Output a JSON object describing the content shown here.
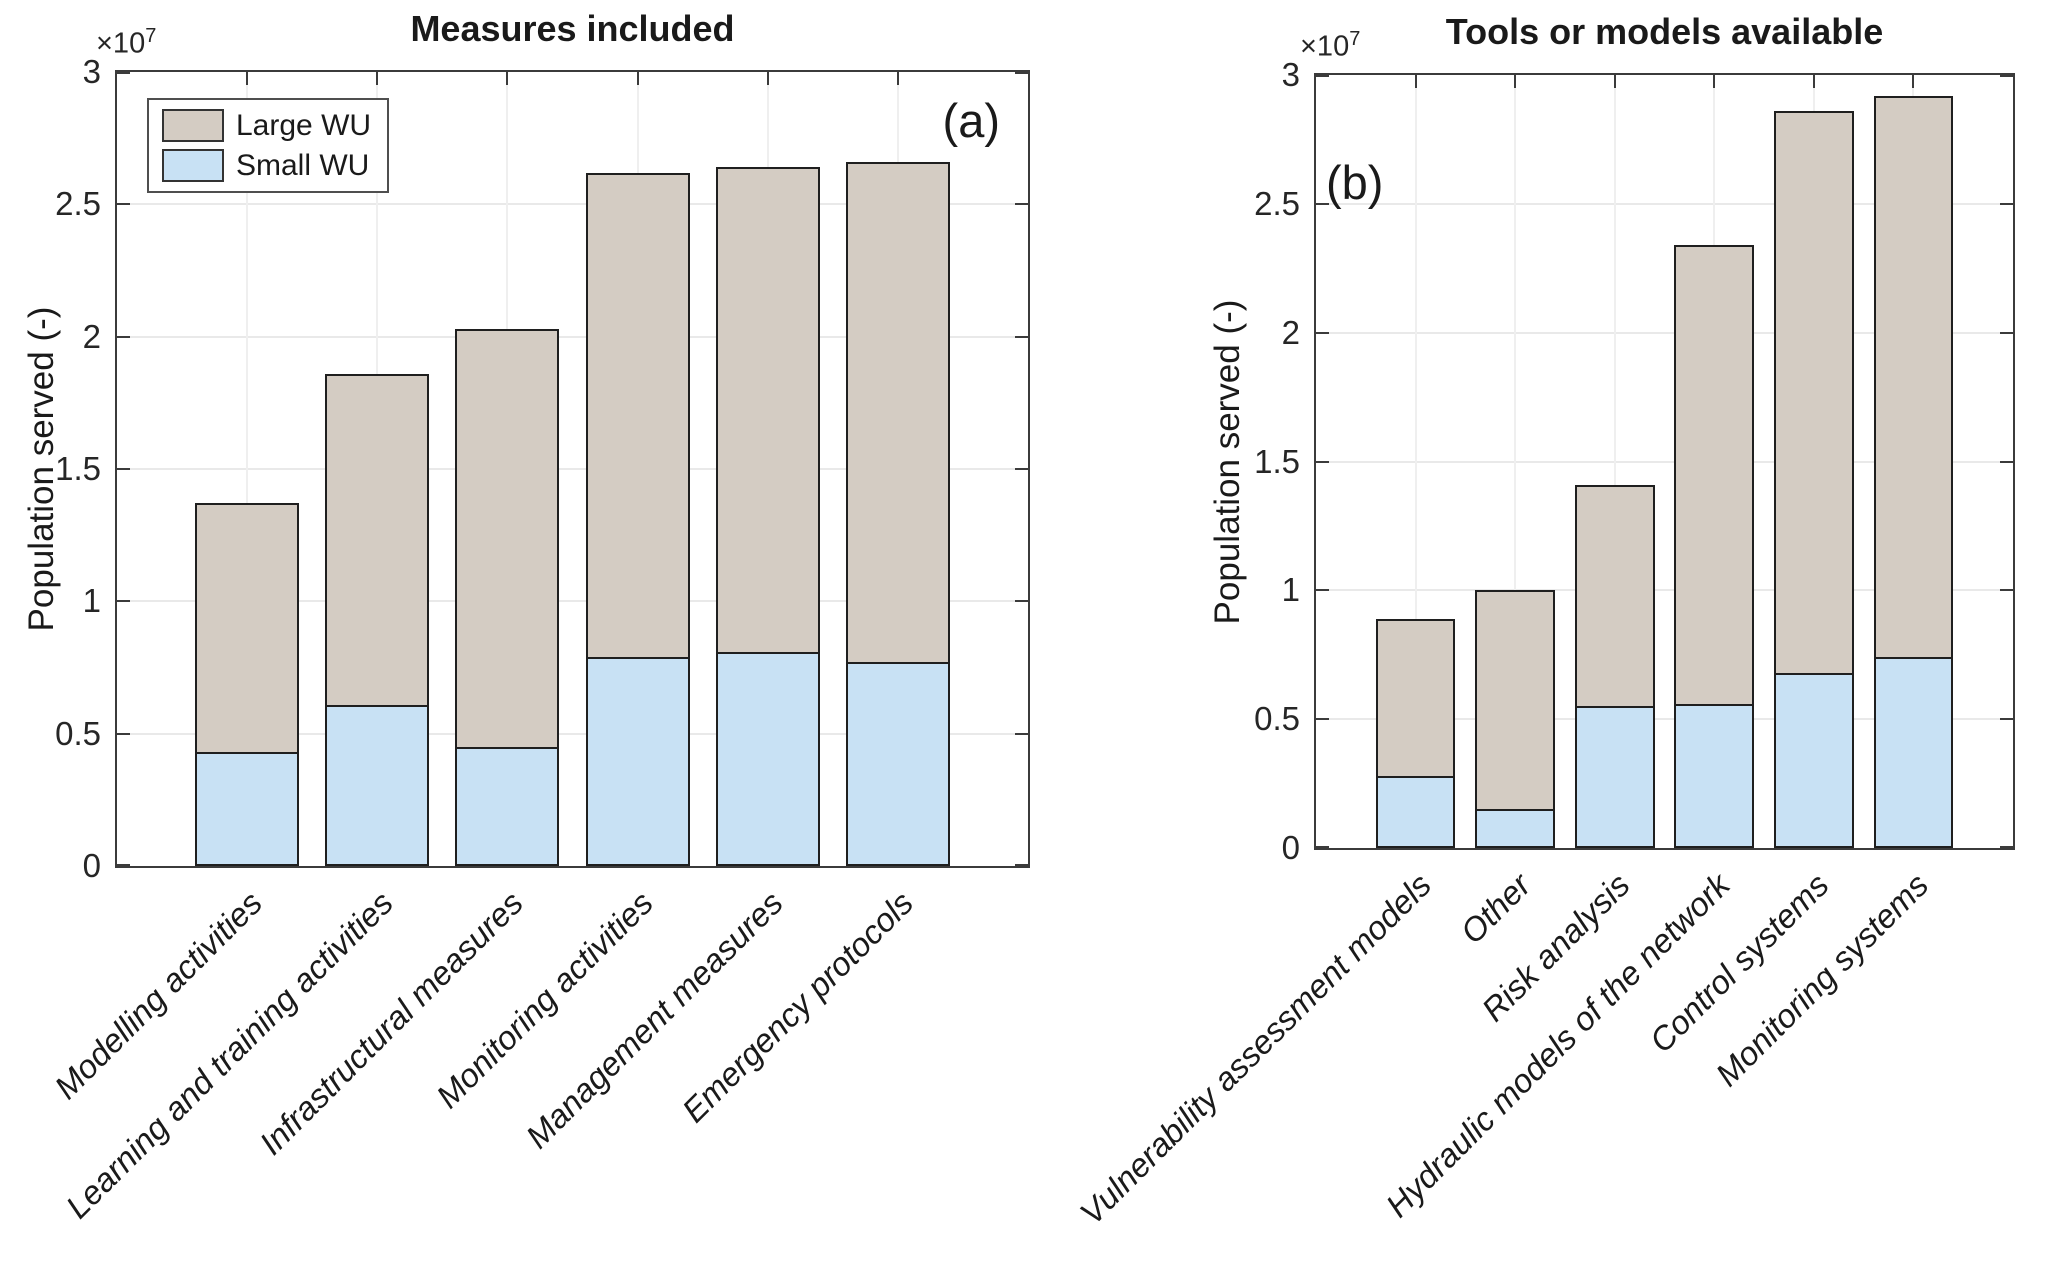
{
  "figure": {
    "exponent_base": "×10",
    "exponent_power": "7",
    "unit_note": "y values are in units of 10^7",
    "legend": {
      "position": "top-left of panel (a)",
      "entries": [
        {
          "label": "Large WU",
          "color": "#d4ccc3"
        },
        {
          "label": "Small WU",
          "color": "#c8e1f4"
        }
      ]
    }
  },
  "colors": {
    "large_wu_fill": "#d4ccc3",
    "small_wu_fill": "#c8e1f4",
    "bar_edge": "#1f1f1f",
    "axis_box": "#3b3b3b",
    "grid": "#e9e9e9",
    "text": "#1a1a1a",
    "background": "#ffffff"
  },
  "chart_data": [
    {
      "type": "bar",
      "stacked": true,
      "title": "Measures included",
      "panel_label": "(a)",
      "ylabel": "Population served (-)",
      "y_exponent": "×10^7",
      "ylim": [
        0,
        3
      ],
      "yticks": [
        0,
        0.5,
        1,
        1.5,
        2,
        2.5,
        3
      ],
      "ytick_labels": [
        "0",
        "0.5",
        "1",
        "1.5",
        "2",
        "2.5",
        "3"
      ],
      "grid": true,
      "categories": [
        "Modelling activities",
        "Learning and training activities",
        "Infrastructural measures",
        "Monitoring activities",
        "Management measures",
        "Emergency protocols"
      ],
      "series": [
        {
          "name": "Small WU",
          "values": [
            0.43,
            0.61,
            0.45,
            0.79,
            0.81,
            0.77
          ]
        },
        {
          "name": "Large WU",
          "values": [
            0.94,
            1.25,
            1.58,
            1.83,
            1.83,
            1.89
          ]
        }
      ],
      "stack_totals": [
        1.37,
        1.86,
        2.03,
        2.62,
        2.64,
        2.66
      ]
    },
    {
      "type": "bar",
      "stacked": true,
      "title": "Tools or models available",
      "panel_label": "(b)",
      "ylabel": "Population served (-)",
      "y_exponent": "×10^7",
      "ylim": [
        0,
        3
      ],
      "yticks": [
        0,
        0.5,
        1,
        1.5,
        2,
        2.5,
        3
      ],
      "ytick_labels": [
        "0",
        "0.5",
        "1",
        "1.5",
        "2",
        "2.5",
        "3"
      ],
      "grid": true,
      "categories": [
        "Vulnerability assessment models",
        "Other",
        "Risk analysis",
        "Hydraulic models of the network",
        "Control systems",
        "Monitoring systems"
      ],
      "series": [
        {
          "name": "Small WU",
          "values": [
            0.28,
            0.15,
            0.55,
            0.56,
            0.68,
            0.74
          ]
        },
        {
          "name": "Large WU",
          "values": [
            0.61,
            0.85,
            0.86,
            1.78,
            2.18,
            2.18
          ]
        }
      ],
      "stack_totals": [
        0.89,
        1.0,
        1.41,
        2.34,
        2.86,
        2.92
      ]
    }
  ]
}
